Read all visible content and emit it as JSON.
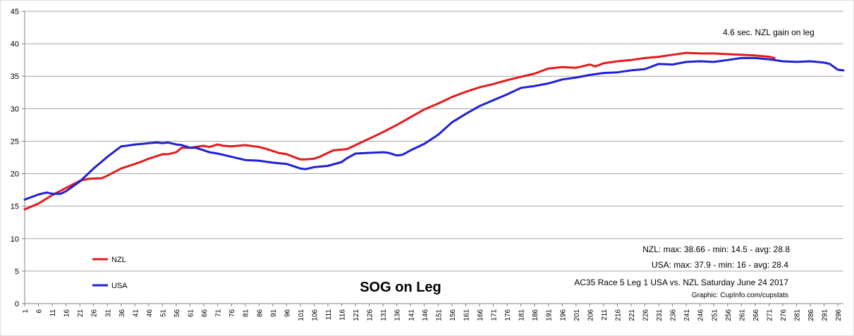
{
  "chart_data": {
    "type": "line",
    "title": "SOG on Leg",
    "xlabel": "",
    "ylabel": "",
    "ylim": [
      0,
      45
    ],
    "yticks": [
      0,
      5,
      10,
      15,
      20,
      25,
      30,
      35,
      40,
      45
    ],
    "xlim": [
      1,
      298
    ],
    "xticks": [
      1,
      6,
      11,
      16,
      21,
      26,
      31,
      36,
      41,
      46,
      51,
      56,
      61,
      66,
      71,
      76,
      81,
      86,
      91,
      96,
      101,
      106,
      111,
      116,
      121,
      126,
      131,
      136,
      141,
      146,
      151,
      156,
      161,
      166,
      171,
      176,
      181,
      186,
      191,
      196,
      201,
      206,
      211,
      216,
      221,
      226,
      231,
      236,
      241,
      246,
      251,
      256,
      261,
      266,
      271,
      276,
      281,
      286,
      291,
      296
    ],
    "grid": "horizontal",
    "legend_position": "bottom-left",
    "series": [
      {
        "name": "NZL",
        "color": "#e31a1c",
        "x": [
          1,
          6,
          11,
          16,
          21,
          24,
          29,
          31,
          36,
          41,
          43,
          46,
          51,
          53,
          56,
          58,
          61,
          66,
          68,
          71,
          73,
          76,
          81,
          86,
          88,
          91,
          93,
          96,
          101,
          103,
          106,
          108,
          111,
          113,
          116,
          118,
          121,
          126,
          131,
          136,
          141,
          146,
          151,
          156,
          161,
          166,
          171,
          176,
          181,
          186,
          191,
          196,
          201,
          203,
          206,
          208,
          211,
          216,
          221,
          226,
          231,
          236,
          241,
          246,
          251,
          256,
          261,
          266,
          271,
          273
        ],
        "values": [
          14.5,
          15.4,
          16.7,
          17.8,
          18.9,
          19.2,
          19.3,
          19.7,
          20.8,
          21.5,
          21.8,
          22.3,
          23.0,
          23.0,
          23.3,
          24.0,
          24.0,
          24.3,
          24.1,
          24.5,
          24.3,
          24.2,
          24.4,
          24.1,
          23.9,
          23.5,
          23.2,
          23.0,
          22.2,
          22.2,
          22.3,
          22.6,
          23.2,
          23.6,
          23.7,
          23.8,
          24.4,
          25.4,
          26.4,
          27.5,
          28.7,
          29.9,
          30.8,
          31.8,
          32.6,
          33.3,
          33.8,
          34.4,
          34.9,
          35.4,
          36.2,
          36.4,
          36.3,
          36.5,
          36.8,
          36.5,
          37.0,
          37.3,
          37.5,
          37.8,
          38.0,
          38.3,
          38.6,
          38.5,
          38.5,
          38.4,
          38.3,
          38.2,
          38.0,
          37.8
        ]
      },
      {
        "name": "USA",
        "color": "#1f1fd6",
        "x": [
          1,
          6,
          9,
          11,
          14,
          16,
          21,
          26,
          31,
          36,
          38,
          41,
          44,
          46,
          49,
          51,
          53,
          56,
          58,
          61,
          63,
          66,
          68,
          71,
          73,
          76,
          81,
          86,
          91,
          96,
          101,
          103,
          106,
          111,
          116,
          118,
          121,
          126,
          131,
          133,
          136,
          138,
          141,
          146,
          151,
          156,
          161,
          166,
          171,
          176,
          181,
          186,
          191,
          196,
          201,
          206,
          211,
          216,
          221,
          226,
          231,
          236,
          241,
          246,
          251,
          256,
          261,
          266,
          271,
          276,
          281,
          286,
          291,
          293,
          296,
          298
        ],
        "values": [
          16.0,
          16.8,
          17.1,
          16.9,
          16.9,
          17.3,
          18.8,
          20.8,
          22.6,
          24.2,
          24.3,
          24.5,
          24.6,
          24.7,
          24.8,
          24.7,
          24.8,
          24.5,
          24.4,
          24.0,
          24.0,
          23.6,
          23.3,
          23.1,
          22.9,
          22.6,
          22.1,
          22.0,
          21.7,
          21.5,
          20.8,
          20.7,
          21.0,
          21.2,
          21.8,
          22.4,
          23.1,
          23.2,
          23.3,
          23.2,
          22.8,
          22.9,
          23.6,
          24.6,
          26.0,
          27.9,
          29.2,
          30.4,
          31.3,
          32.2,
          33.2,
          33.5,
          33.9,
          34.5,
          34.8,
          35.2,
          35.5,
          35.6,
          35.9,
          36.1,
          36.9,
          36.8,
          37.2,
          37.3,
          37.2,
          37.5,
          37.8,
          37.8,
          37.6,
          37.3,
          37.2,
          37.3,
          37.1,
          36.9,
          36.0,
          35.9
        ]
      }
    ],
    "annotations": {
      "gain": "4.6 sec. NZL gain on leg",
      "nzl_stats": "NZL: max: 38.66  - min: 14.5  - avg: 28.8",
      "usa_stats": "USA: max: 37.9 - min: 16  - avg: 28.4",
      "race": "AC35  Race 5 Leg 1 USA vs. NZL Saturday June 24 2017",
      "credit": "Graphic: CupInfo.com/cupstats"
    }
  }
}
